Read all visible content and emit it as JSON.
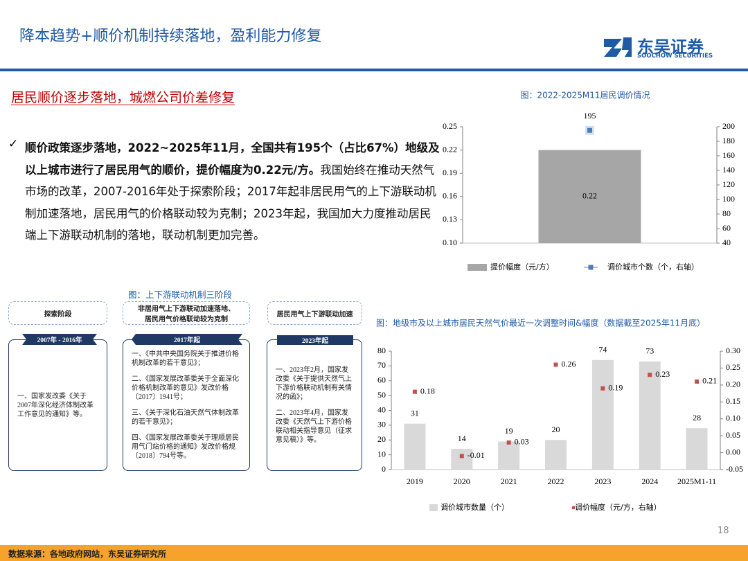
{
  "header": {
    "title": "降本趋势+顺价机制持续落地，盈利能力修复",
    "logo_cn": "东吴证券",
    "logo_en": "SOOCHOW SECURITIES"
  },
  "section": {
    "heading": "居民顺价逐步落地，城燃公司价差修复"
  },
  "body": {
    "bold": "顺价政策逐步落地，2022~2025年11月，全国共有195个（占比67%）地级及以上城市进行了居民用气的顺价，提价幅度为0.22元/方。",
    "text": "我国始终在推动天然气市场的改革，2007-2016年处于探索阶段；2017年起非居民用气的上下游联动机制加速落地，居民用气的价格联动较为克制；2023年起，我国加大力度推动居民端上下游联动机制的落地，联动机制更加完善。"
  },
  "diagram": {
    "title": "图：上下游联动机制三阶段",
    "stages": [
      {
        "label": "探索阶段",
        "period": "2007年 - 2016年",
        "content": [
          "一、国家发改委《关于2007年深化经济体制改革工作意见的通知》等。"
        ]
      },
      {
        "label": "非居用气上下游联动加速落地、居民用气价格联动较为克制",
        "period": "2017年起",
        "content": [
          "一、《中共中央国务院关于推进价格机制改革的若干意见》；",
          "二、《国家发展改革委关于全面深化价格机制改革的意见》发改价格〔2017〕1941号；",
          "三、《关于深化石油天然气体制改革的若干意见》；",
          "四、《国家发展改革委关于理顺居民用气门站价格的通知》发改价格规〔2018〕794号等。"
        ]
      },
      {
        "label": "居民用气上下游联动加速",
        "period": "2023年起",
        "content": [
          "一、2023年2月，国家发改委《关于提供天然气上下游价格联动机制有关情况的函》；",
          "二、2023年4月，国家发改委《天然气上下游价格联动相关指导意见（征求意见稿）》等。"
        ]
      }
    ]
  },
  "chart_data": [
    {
      "type": "bar",
      "title": "图：2022-2025M11居民调价情况",
      "categories": [
        null
      ],
      "series": [
        {
          "name": "提价幅度（元/方）",
          "color": "#a6a6a6",
          "values": [
            0.22
          ]
        },
        {
          "name": "调价城市个数（个，右轴）",
          "color": "#4a7ebb",
          "values": [
            195
          ],
          "axis": "y2"
        }
      ],
      "ylim": [
        0.1,
        0.25
      ],
      "yticks": [
        {
          "value": 0.1,
          "label": "0.10"
        },
        0.13,
        0.16,
        0.19,
        0.22,
        0.25
      ],
      "y2lim": [
        40,
        200
      ],
      "y2ticks": [
        40,
        60,
        80,
        100,
        120,
        140,
        160,
        180,
        200
      ],
      "grid": false
    },
    {
      "type": "bar",
      "title": "图：地级市及以上城市居民天然气价最近一次调整时间&幅度（数据截至2025年11月底）",
      "categories": [
        "2019",
        "2020",
        "2021",
        "2022",
        "2023",
        "2024",
        "2025M1-11"
      ],
      "series": [
        {
          "name": "调价城市数量（个）",
          "color": "#d9d9d9",
          "values": [
            31,
            14,
            19,
            20,
            74,
            73,
            28
          ]
        },
        {
          "name": "调价幅度（元/方，右轴）",
          "color": "#c0504d",
          "values": [
            0.18,
            -0.01,
            0.03,
            0.26,
            0.19,
            0.23,
            0.21
          ],
          "axis": "y2"
        }
      ],
      "ylim": [
        0,
        80
      ],
      "yticks": [
        0,
        10,
        20,
        30,
        40,
        50,
        60,
        70,
        80
      ],
      "y2lim": [
        -0.05,
        0.3
      ],
      "y2ticks": [
        -0.05,
        {
          "value": 0,
          "label": "0.00"
        },
        0.05,
        {
          "value": 0.1,
          "label": "0.10"
        },
        0.15,
        {
          "value": 0.2,
          "label": "0.20"
        },
        0.25,
        {
          "value": 0.3,
          "label": "0.30"
        }
      ],
      "grid": false
    }
  ],
  "footer": {
    "source": "数据来源：各地政府网站，东吴证券研究所",
    "page": "18"
  }
}
